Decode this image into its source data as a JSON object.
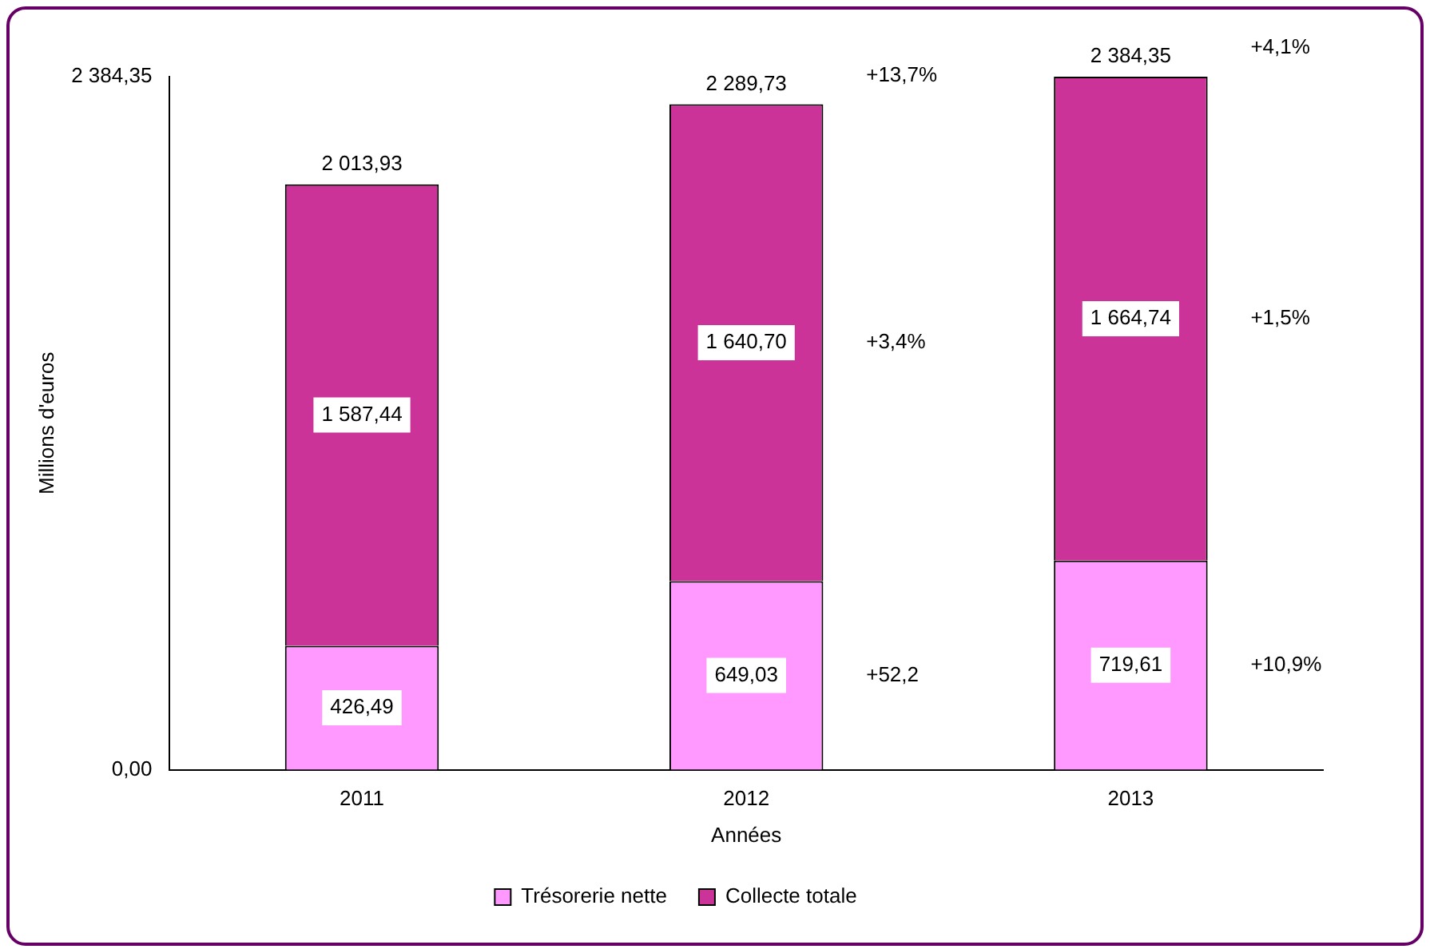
{
  "chart_data": {
    "type": "bar",
    "stacked": true,
    "xlabel": "Années",
    "ylabel": "Millions d'euros",
    "categories": [
      "2011",
      "2012",
      "2013"
    ],
    "series": [
      {
        "name": "Trésorerie nette",
        "color": "#ff99ff",
        "values": [
          426.49,
          649.03,
          719.61
        ],
        "value_labels": [
          "426,49",
          "649,03",
          "719,61"
        ]
      },
      {
        "name": "Collecte totale",
        "color": "#cc3399",
        "values": [
          1587.44,
          1640.7,
          1664.74
        ],
        "value_labels": [
          "1 587,44",
          "1 640,70",
          "1 664,74"
        ]
      }
    ],
    "totals": [
      "2 013,93",
      "2 289,73",
      "2 384,35"
    ],
    "ylim": [
      0,
      2384.35
    ],
    "yticks": [
      {
        "value": 0,
        "label": "0,00"
      },
      {
        "value": 2384.35,
        "label": "2 384,35"
      }
    ],
    "grid": false,
    "legend": "bottom",
    "annotations": [
      "+13,7%",
      "+4,1%",
      "+3,4%",
      "+1,5%",
      "+52,2",
      "+10,9%"
    ]
  }
}
